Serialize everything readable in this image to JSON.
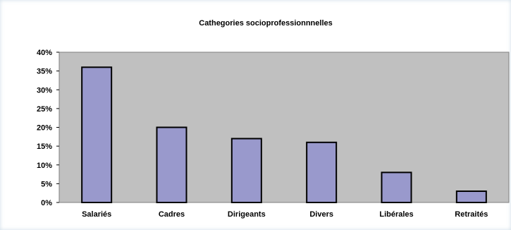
{
  "chart_data": {
    "type": "bar",
    "title": "Cathegories socioprofessionnnelles",
    "categories": [
      "Salariés",
      "Cadres",
      "Dirigeants",
      "Divers",
      "Libérales",
      "Retraités"
    ],
    "values": [
      0.36,
      0.2,
      0.17,
      0.16,
      0.08,
      0.03
    ],
    "ylim": [
      0,
      0.4
    ],
    "yticks": [
      "0%",
      "5%",
      "10%",
      "15%",
      "20%",
      "25%",
      "30%",
      "35%",
      "40%"
    ],
    "grid": false,
    "legend": "none",
    "colors": {
      "bar_fill": "#9999cc",
      "bar_stroke": "#000000",
      "plot_background": "#c0c0c0",
      "plot_border": "#808080"
    }
  }
}
